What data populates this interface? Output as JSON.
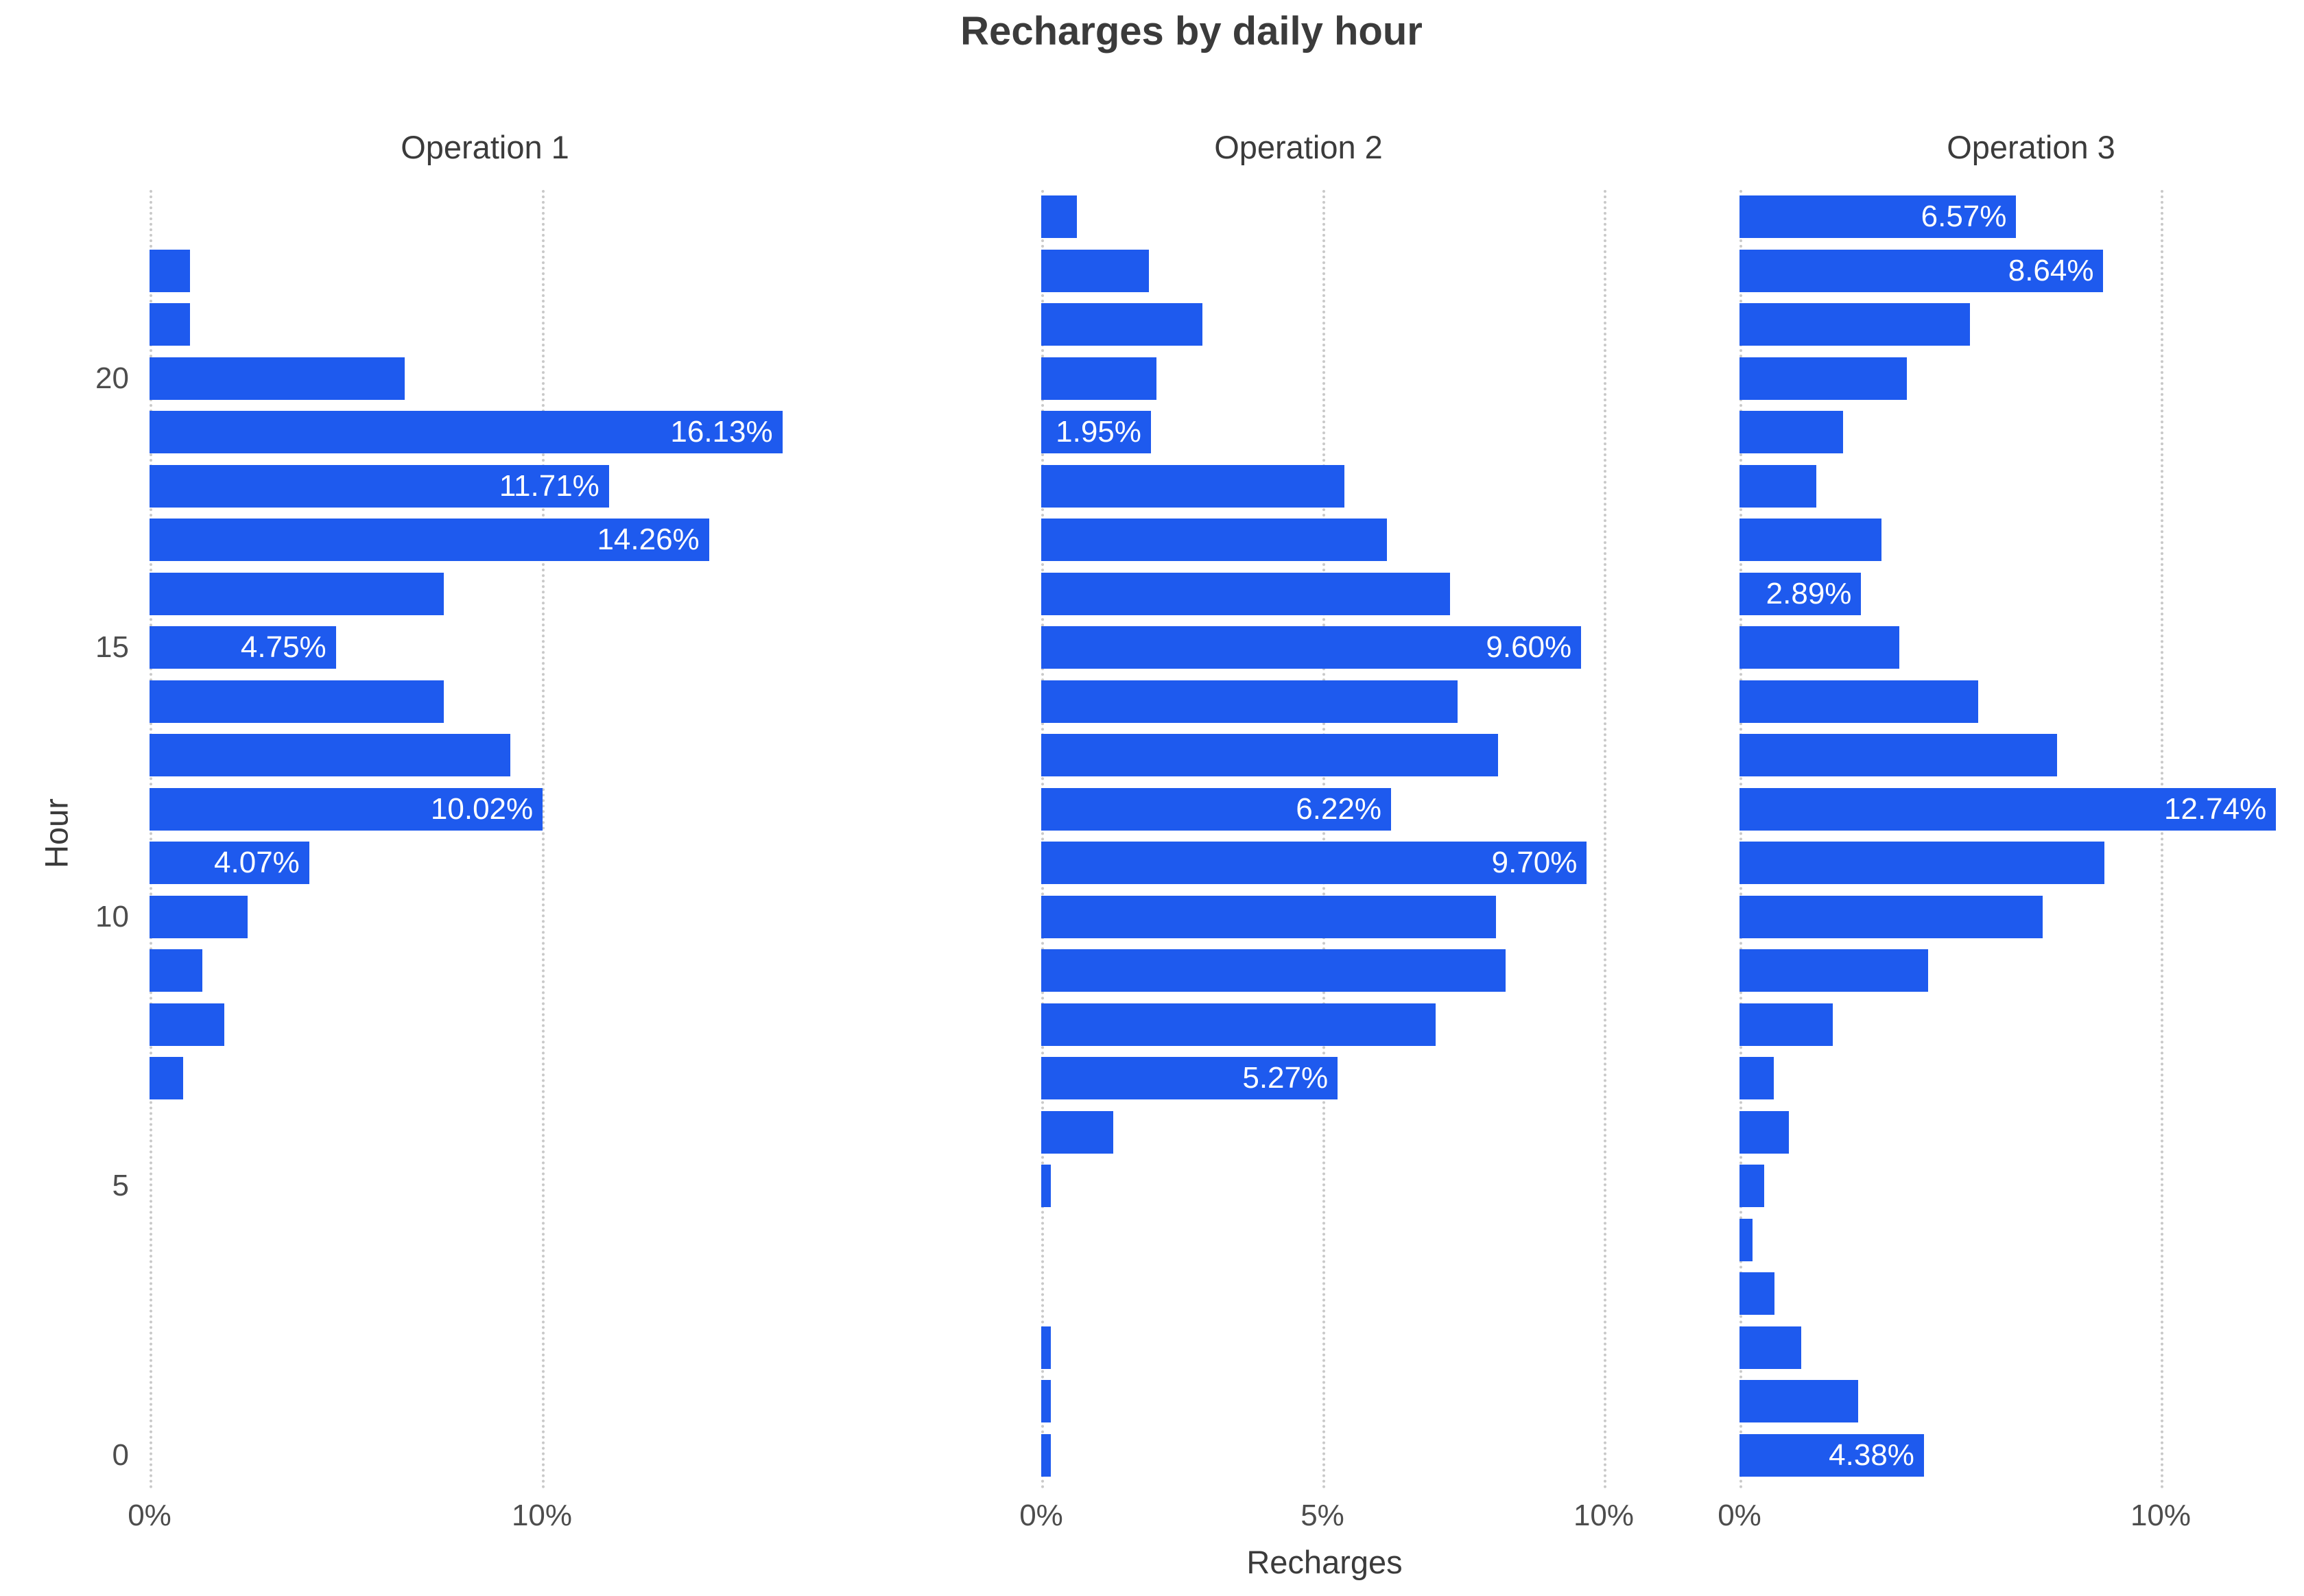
{
  "title": "Recharges by daily hour",
  "axes": {
    "x_title": "Recharges",
    "y_title": "Hour"
  },
  "colors": {
    "bar": "#1e5aee",
    "bar_label_text": "#ffffff",
    "title_text": "#3b3b3b",
    "tick_text": "#4d4d4d",
    "gridline": "#c9c9c9",
    "background": "#ffffff"
  },
  "chart_data": {
    "type": "bar",
    "orientation": "horizontal",
    "title": "Recharges by daily hour",
    "xlabel": "Recharges",
    "ylabel": "Hour",
    "grid": "vertical-dotted",
    "hours_top_to_bottom": [
      23,
      22,
      21,
      20,
      19,
      18,
      17,
      16,
      15,
      14,
      13,
      12,
      11,
      10,
      9,
      8,
      7,
      6,
      5,
      4,
      3,
      2,
      1,
      0
    ],
    "y_tick_labels": [
      "20",
      "15",
      "10",
      "5",
      "0"
    ],
    "y_tick_hours": [
      20,
      15,
      10,
      5,
      0
    ],
    "panels": [
      {
        "name": "Operation 1",
        "xmax_pct": 17.5,
        "x_ticks": [
          {
            "pct": 0,
            "label": "0%"
          },
          {
            "pct": 10,
            "label": "10%"
          }
        ],
        "values_pct": [
          0,
          1.03,
          1.03,
          6.5,
          16.13,
          11.71,
          14.26,
          7.5,
          4.75,
          7.5,
          9.2,
          10.02,
          4.07,
          2.5,
          1.35,
          1.9,
          0.85,
          0,
          0,
          0,
          0,
          0,
          0,
          0
        ],
        "bar_labels": {
          "19": "16.13%",
          "18": "11.71%",
          "17": "14.26%",
          "15": "4.75%",
          "12": "10.02%",
          "11": "4.07%"
        }
      },
      {
        "name": "Operation 2",
        "xmax_pct": 11.7,
        "x_ticks": [
          {
            "pct": 0,
            "label": "0%"
          },
          {
            "pct": 5,
            "label": "5%"
          },
          {
            "pct": 10,
            "label": "10%"
          }
        ],
        "values_pct": [
          0.63,
          1.91,
          2.87,
          2.05,
          1.95,
          5.39,
          6.15,
          7.27,
          9.6,
          7.4,
          8.12,
          6.22,
          9.7,
          8.09,
          8.26,
          7.01,
          5.27,
          1.28,
          0.1,
          0,
          0,
          0.07,
          0.17,
          0.08
        ],
        "bar_labels": {
          "19": "1.95%",
          "15": "9.60%",
          "12": "6.22%",
          "11": "9.70%",
          "7": "5.27%"
        }
      },
      {
        "name": "Operation 3",
        "xmax_pct": 13.0,
        "x_ticks": [
          {
            "pct": 0,
            "label": "0%"
          },
          {
            "pct": 10,
            "label": "10%"
          }
        ],
        "values_pct": [
          6.57,
          8.64,
          5.48,
          3.97,
          2.46,
          1.82,
          3.37,
          2.89,
          3.79,
          5.67,
          7.54,
          12.74,
          8.66,
          7.2,
          4.48,
          2.21,
          0.81,
          1.17,
          0.59,
          0.31,
          0.83,
          1.47,
          2.82,
          4.38
        ],
        "bar_labels": {
          "23": "6.57%",
          "22": "8.64%",
          "16": "2.89%",
          "12": "12.74%",
          "0": "4.38%"
        }
      }
    ]
  }
}
